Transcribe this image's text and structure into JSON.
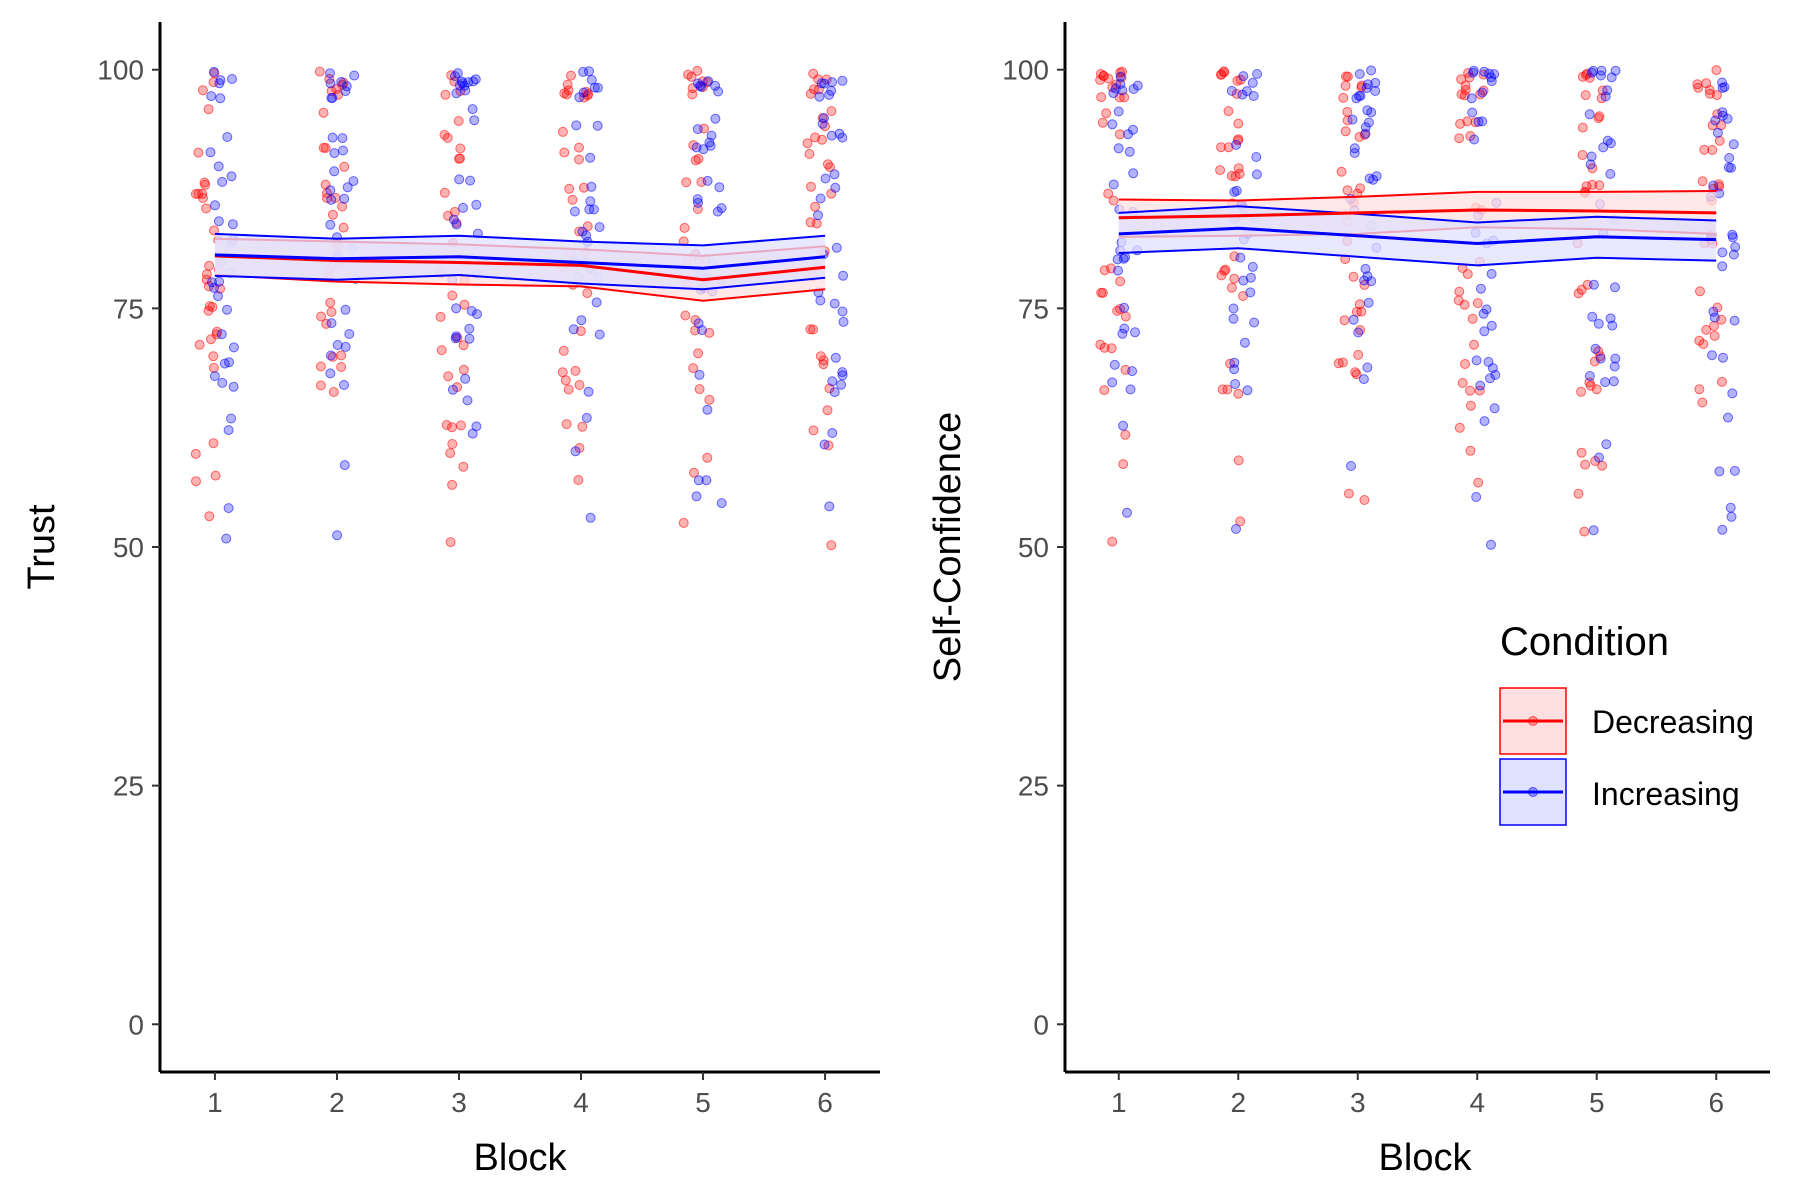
{
  "colors": {
    "decreasing": "#FF0000",
    "increasing": "#0000FF",
    "decreasing_fill": "#FFE0E0",
    "increasing_fill": "#E0E0FF",
    "axis": "#000000",
    "tick_label": "#4d4d4d"
  },
  "legend": {
    "title": "Condition",
    "placement": "right-middle",
    "items": [
      {
        "label": "Decreasing",
        "color": "#FF0000"
      },
      {
        "label": "Increasing",
        "color": "#0000FF"
      }
    ]
  },
  "chart_data": [
    {
      "type": "scatter",
      "overlay": "line-with-confidence-band",
      "xlabel": "Block",
      "ylabel": "Trust",
      "x": [
        1,
        2,
        3,
        4,
        5,
        6
      ],
      "xlim": [
        0.55,
        6.45
      ],
      "ylim": [
        -5,
        105
      ],
      "yticks": [
        0,
        25,
        50,
        75,
        100
      ],
      "grid": false,
      "series": [
        {
          "name": "Decreasing",
          "mean": [
            80.5,
            80.0,
            79.8,
            79.5,
            78.0,
            79.3
          ],
          "lower": [
            78.5,
            77.8,
            77.5,
            77.3,
            75.8,
            77.0
          ],
          "upper": [
            82.3,
            82.0,
            81.7,
            81.2,
            80.5,
            81.5
          ]
        },
        {
          "name": "Increasing",
          "mean": [
            80.6,
            80.2,
            80.4,
            79.8,
            79.2,
            80.4
          ],
          "lower": [
            78.4,
            78.0,
            78.5,
            77.6,
            77.0,
            78.2
          ],
          "upper": [
            82.8,
            82.3,
            82.6,
            82.0,
            81.6,
            82.6
          ]
        }
      ]
    },
    {
      "type": "scatter",
      "overlay": "line-with-confidence-band",
      "xlabel": "Block",
      "ylabel": "Self-Confidence",
      "x": [
        1,
        2,
        3,
        4,
        5,
        6
      ],
      "xlim": [
        0.55,
        6.45
      ],
      "ylim": [
        -5,
        105
      ],
      "yticks": [
        0,
        25,
        50,
        75,
        100
      ],
      "grid": false,
      "series": [
        {
          "name": "Decreasing",
          "mean": [
            84.5,
            84.7,
            85.0,
            85.3,
            85.2,
            85.0
          ],
          "lower": [
            82.5,
            82.6,
            82.8,
            83.5,
            83.3,
            82.8
          ],
          "upper": [
            86.4,
            86.3,
            86.7,
            87.2,
            87.2,
            87.3
          ]
        },
        {
          "name": "Increasing",
          "mean": [
            82.8,
            83.4,
            82.6,
            81.8,
            82.5,
            82.2
          ],
          "lower": [
            80.8,
            81.3,
            80.4,
            79.5,
            80.3,
            80.0
          ],
          "upper": [
            85.0,
            85.7,
            84.9,
            84.0,
            84.6,
            84.2
          ]
        }
      ]
    }
  ]
}
